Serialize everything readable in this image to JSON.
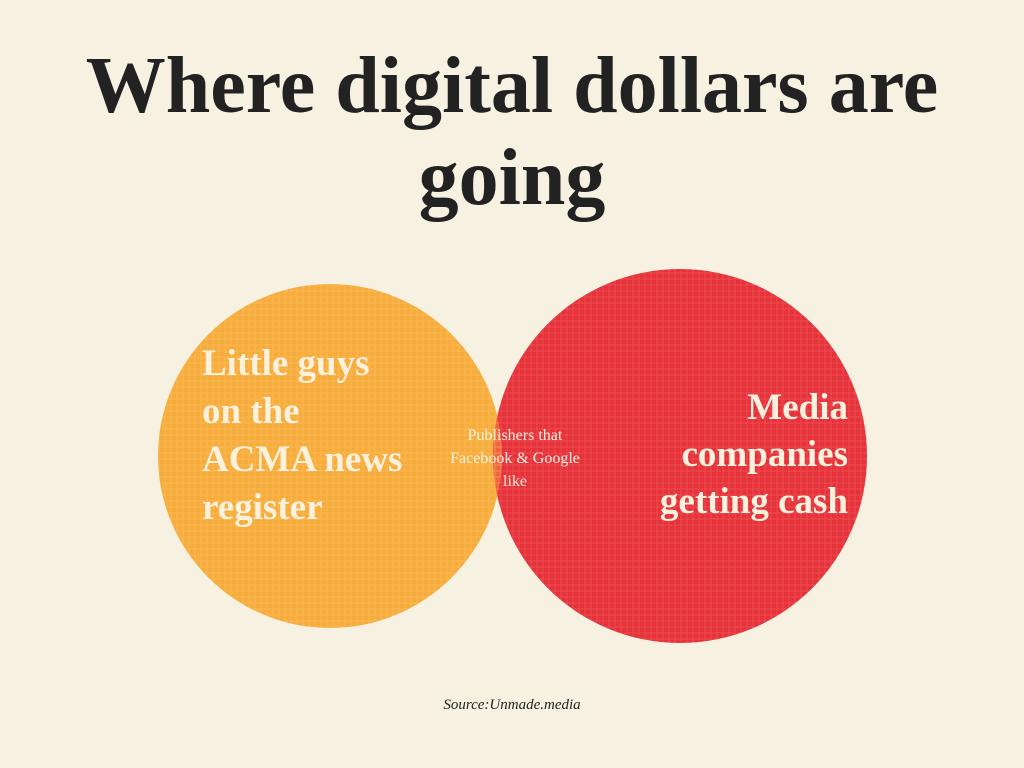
{
  "title": "Where digital dollars are going",
  "circles": [
    {
      "label": "Little guys on the ACMA news register"
    },
    {
      "label": "Media companies getting cash"
    }
  ],
  "overlap": {
    "label": "Publishers that Facebook & Google like"
  },
  "source": "Source:Unmade.media"
}
